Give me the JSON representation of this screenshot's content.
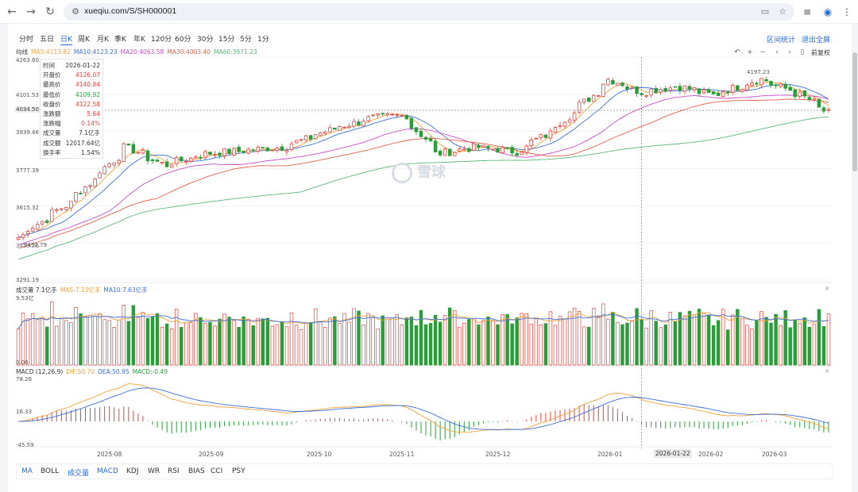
{
  "browser": {
    "url": "xueqiu.com/S/SH000001"
  },
  "periods": [
    "分时",
    "五日",
    "日K",
    "周K",
    "月K",
    "季K",
    "年K",
    "120分",
    "60分",
    "30分",
    "15分",
    "5分",
    "1分"
  ],
  "active_period": "日K",
  "top_links": {
    "range_stats": "区间统计",
    "fullscreen": "退出全屏"
  },
  "fq_label": "前复权",
  "ma_legend": {
    "label": "均线",
    "items": [
      {
        "text": "MA5:4113.82",
        "color": "#f0a23b"
      },
      {
        "text": "MA10:4123.23",
        "color": "#3b6fd8"
      },
      {
        "text": "MA20:4063.58",
        "color": "#c84fc8"
      },
      {
        "text": "MA30:4003.40",
        "color": "#e8604c"
      },
      {
        "text": "MA60:3971.23",
        "color": "#5cb87a"
      }
    ]
  },
  "info_box": {
    "rows": [
      {
        "k": "时间",
        "v": "2026-01-22",
        "color": "#333333"
      },
      {
        "k": "开盘价",
        "v": "4126.07",
        "color": "#e8413a"
      },
      {
        "k": "最高价",
        "v": "4140.84",
        "color": "#e8413a"
      },
      {
        "k": "最低价",
        "v": "4109.92",
        "color": "#2a9d3a"
      },
      {
        "k": "收盘价",
        "v": "4122.58",
        "color": "#e8413a"
      },
      {
        "k": "涨跌额",
        "v": "5.64",
        "color": "#e8413a"
      },
      {
        "k": "涨跌幅",
        "v": "0.14%",
        "color": "#e8413a"
      },
      {
        "k": "成交量",
        "v": "7.1亿手",
        "color": "#333333"
      },
      {
        "k": "成交额",
        "v": "12017.64亿",
        "color": "#333333"
      },
      {
        "k": "换手率",
        "v": "1.54%",
        "color": "#333333"
      }
    ]
  },
  "price_axis": {
    "labels": [
      "4263.60",
      "4101.53",
      "3939.46",
      "3777.39",
      "3615.32",
      "3453.26",
      "3291.19"
    ],
    "current": "4034.50",
    "max_marker": "4197.23",
    "min_marker": "3452.79"
  },
  "volume_legend": {
    "label": "成交量 7.1亿手",
    "items": [
      {
        "text": "MA5:7.13亿手",
        "color": "#f0a23b"
      },
      {
        "text": "MA10:7.63亿手",
        "color": "#3b6fd8"
      }
    ],
    "axis_top": "9.53亿",
    "axis_bottom": "0.00"
  },
  "macd_legend": {
    "label": "MACD (12,26,9)",
    "items": [
      {
        "text": "DIF:50.70",
        "color": "#f0a23b"
      },
      {
        "text": "DEA:50.95",
        "color": "#3b6fd8"
      },
      {
        "text": "MACD:-0.49",
        "color": "#2a9d3a"
      }
    ],
    "axis": [
      "78.26",
      "16.33",
      "-45.59"
    ]
  },
  "x_axis": [
    "2025-08",
    "2025-09",
    "2025-10",
    "2025-11",
    "2025-12",
    "2026-01",
    "2026-02",
    "2026-03"
  ],
  "x_cursor": "2026-01-22",
  "indicators": [
    "MA",
    "BOLL",
    "成交量",
    "MACD",
    "KDJ",
    "WR",
    "RSI",
    "BIAS",
    "CCI",
    "PSY"
  ],
  "active_indicators": [
    "MA",
    "成交量",
    "MACD"
  ],
  "watermark": "雪球",
  "colors": {
    "up": "#e8413a",
    "down": "#2a9d3a",
    "accent": "#1f6bd6"
  },
  "chart_data": {
    "type": "candlestick",
    "price_range": [
      3291.19,
      4263.6
    ],
    "anchors_close": [
      [
        "2025-07-24",
        3480
      ],
      [
        "2025-08-08",
        3630
      ],
      [
        "2025-08-25",
        3880
      ],
      [
        "2025-09-05",
        3800
      ],
      [
        "2025-09-17",
        3850
      ],
      [
        "2025-10-10",
        3880
      ],
      [
        "2025-10-24",
        3960
      ],
      [
        "2025-11-05",
        4010
      ],
      [
        "2025-11-14",
        4020
      ],
      [
        "2025-11-24",
        3850
      ],
      [
        "2025-12-05",
        3880
      ],
      [
        "2025-12-17",
        3860
      ],
      [
        "2025-12-26",
        3940
      ],
      [
        "2026-01-06",
        4080
      ],
      [
        "2026-01-13",
        4180
      ],
      [
        "2026-01-22",
        4122.58
      ],
      [
        "2026-02-02",
        4150
      ],
      [
        "2026-02-12",
        4110
      ],
      [
        "2026-02-26",
        4180
      ],
      [
        "2026-03-10",
        4110
      ],
      [
        "2026-03-18",
        4030
      ]
    ],
    "volume_range": [
      0,
      9.53
    ],
    "macd_range": [
      -45.59,
      78.26
    ]
  }
}
